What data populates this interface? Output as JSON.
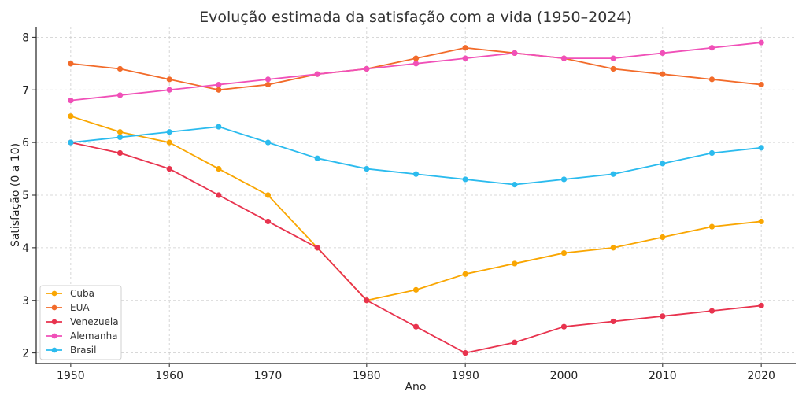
{
  "chart_data": {
    "type": "line",
    "title": "Evolução estimada da satisfação com a vida (1950–2024)",
    "xlabel": "Ano",
    "ylabel": "Satisfação (0 a 10)",
    "x": [
      1950,
      1955,
      1960,
      1965,
      1970,
      1975,
      1980,
      1985,
      1990,
      1995,
      2000,
      2005,
      2010,
      2015,
      2020
    ],
    "xlim": [
      1946.5,
      2023.5
    ],
    "ylim": [
      1.8,
      8.2
    ],
    "xticks": [
      1950,
      1960,
      1970,
      1980,
      1990,
      2000,
      2010,
      2020
    ],
    "yticks": [
      2,
      3,
      4,
      5,
      6,
      7,
      8
    ],
    "grid": true,
    "legend_position": "bottom-left",
    "series": [
      {
        "name": "Cuba",
        "color": "#F9A602",
        "values": [
          6.5,
          6.2,
          6.0,
          5.5,
          5.0,
          4.0,
          3.0,
          3.2,
          3.5,
          3.7,
          3.9,
          4.0,
          4.2,
          4.4,
          4.5
        ]
      },
      {
        "name": "EUA",
        "color": "#F26B2A",
        "values": [
          7.5,
          7.4,
          7.2,
          7.0,
          7.1,
          7.3,
          7.4,
          7.6,
          7.8,
          7.7,
          7.6,
          7.4,
          7.3,
          7.2,
          7.1
        ]
      },
      {
        "name": "Venezuela",
        "color": "#E8334E",
        "values": [
          6.0,
          5.8,
          5.5,
          5.0,
          4.5,
          4.0,
          3.0,
          2.5,
          2.0,
          2.2,
          2.5,
          2.6,
          2.7,
          2.8,
          2.9
        ]
      },
      {
        "name": "Alemanha",
        "color": "#F050B8",
        "values": [
          6.8,
          6.9,
          7.0,
          7.1,
          7.2,
          7.3,
          7.4,
          7.5,
          7.6,
          7.7,
          7.6,
          7.6,
          7.7,
          7.8,
          7.9
        ]
      },
      {
        "name": "Brasil",
        "color": "#2BBBEE",
        "values": [
          6.0,
          6.1,
          6.2,
          6.3,
          6.0,
          5.7,
          5.5,
          5.4,
          5.3,
          5.2,
          5.3,
          5.4,
          5.6,
          5.8,
          5.9
        ]
      }
    ]
  }
}
